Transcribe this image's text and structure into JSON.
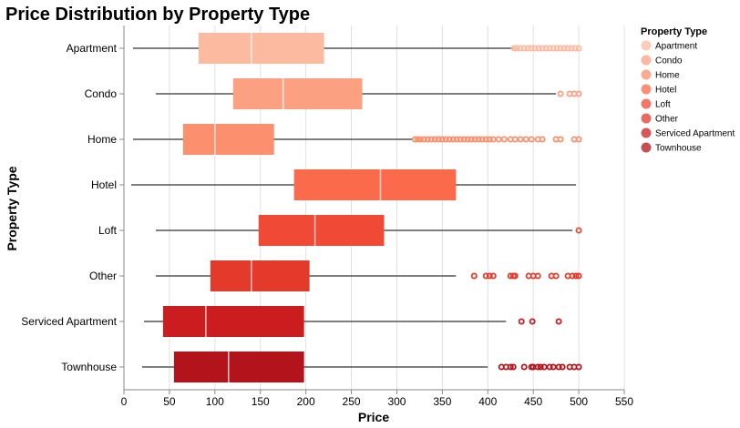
{
  "chart_data": {
    "type": "boxplot",
    "title": "Price Distribution by Property Type",
    "xlabel": "Price",
    "ylabel": "Property Type",
    "xlim": [
      0,
      550
    ],
    "x_ticks": [
      "0",
      "50",
      "100",
      "150",
      "200",
      "250",
      "300",
      "350",
      "400",
      "450",
      "500",
      "550"
    ],
    "grid": true,
    "legend": {
      "title": "Property Type",
      "position": "right"
    },
    "categories": [
      "Apartment",
      "Condo",
      "Home",
      "Hotel",
      "Loft",
      "Other",
      "Serviced Apartment",
      "Townhouse"
    ],
    "colors": [
      "#fcbba1",
      "#fca082",
      "#fb8f6e",
      "#fb6a4a",
      "#f04a36",
      "#e33a2c",
      "#cb1d1f",
      "#b3141b"
    ],
    "series": [
      {
        "name": "Apartment",
        "whisker_low": 10,
        "q1": 82,
        "median": 140,
        "q3": 220,
        "whisker_high": 428,
        "outliers": [
          429,
          432,
          436,
          440,
          444,
          448,
          452,
          456,
          460,
          464,
          468,
          472,
          476,
          480,
          484,
          488,
          492,
          496,
          500
        ]
      },
      {
        "name": "Condo",
        "whisker_low": 35,
        "q1": 120,
        "median": 175,
        "q3": 262,
        "whisker_high": 475,
        "outliers": [
          480,
          490,
          495,
          500
        ]
      },
      {
        "name": "Home",
        "whisker_low": 10,
        "q1": 65,
        "median": 100,
        "q3": 165,
        "whisker_high": 318,
        "outliers": [
          320,
          323,
          326,
          330,
          334,
          338,
          342,
          346,
          350,
          354,
          358,
          362,
          366,
          370,
          374,
          378,
          382,
          386,
          390,
          394,
          398,
          402,
          406,
          412,
          418,
          425,
          430,
          436,
          442,
          448,
          455,
          460,
          475,
          480,
          495,
          500
        ]
      },
      {
        "name": "Hotel",
        "whisker_low": 8,
        "q1": 187,
        "median": 282,
        "q3": 365,
        "whisker_high": 497,
        "outliers": []
      },
      {
        "name": "Loft",
        "whisker_low": 35,
        "q1": 148,
        "median": 210,
        "q3": 286,
        "whisker_high": 493,
        "outliers": [
          500
        ]
      },
      {
        "name": "Other",
        "whisker_low": 35,
        "q1": 95,
        "median": 140,
        "q3": 204,
        "whisker_high": 365,
        "outliers": [
          385,
          398,
          402,
          406,
          425,
          428,
          430,
          445,
          450,
          455,
          470,
          475,
          488,
          493,
          497,
          500
        ]
      },
      {
        "name": "Serviced Apartment",
        "whisker_low": 22,
        "q1": 43,
        "median": 90,
        "q3": 198,
        "whisker_high": 420,
        "outliers": [
          437,
          449,
          478
        ]
      },
      {
        "name": "Townhouse",
        "whisker_low": 20,
        "q1": 55,
        "median": 115,
        "q3": 198,
        "whisker_high": 400,
        "outliers": [
          415,
          420,
          425,
          428,
          440,
          448,
          450,
          455,
          458,
          462,
          468,
          472,
          478,
          482,
          490,
          495,
          500
        ]
      }
    ]
  }
}
